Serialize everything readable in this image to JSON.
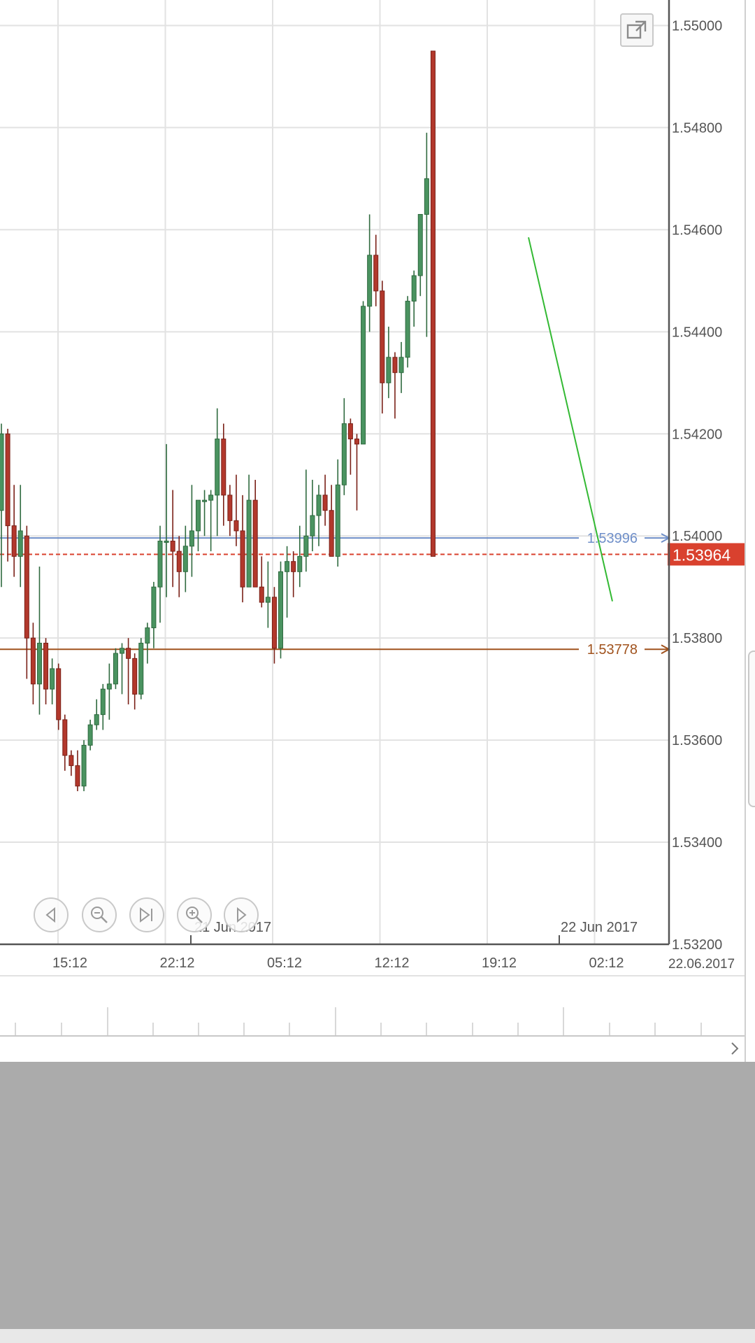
{
  "chart_data": {
    "type": "candlestick",
    "title": "",
    "ylim": [
      1.532,
      1.5505
    ],
    "y_ticks": [
      "1.55000",
      "1.54800",
      "1.54600",
      "1.54400",
      "1.54200",
      "1.54000",
      "1.53800",
      "1.53600",
      "1.53400",
      "1.53200"
    ],
    "y_tick_values": [
      1.55,
      1.548,
      1.546,
      1.544,
      1.542,
      1.54,
      1.538,
      1.536,
      1.534,
      1.532
    ],
    "x_ticks": [
      "15:12",
      "22:12",
      "05:12",
      "12:12",
      "19:12",
      "02:12"
    ],
    "date_labels": [
      "21 Jun 2017",
      "22 Jun 2017"
    ],
    "corner_date": "22.06.2017",
    "grid": true,
    "current_price": {
      "value": 1.53964,
      "label": "1.53964",
      "color": "#d9412e"
    },
    "hlines": [
      {
        "value": 1.53996,
        "label": "1.53996",
        "color": "#6f8fc9"
      },
      {
        "value": 1.53778,
        "label": "1.53778",
        "color": "#a0521d"
      }
    ],
    "trendline": {
      "from": [
        1.5,
        1.54585
      ],
      "to": [
        1.508,
        1.53872
      ],
      "color": "#33b933"
    },
    "candles": [
      [
        1.5405,
        1.5422,
        1.539,
        1.542
      ],
      [
        1.542,
        1.5421,
        1.5395,
        1.5402
      ],
      [
        1.5402,
        1.541,
        1.5392,
        1.5396
      ],
      [
        1.5396,
        1.541,
        1.539,
        1.5401
      ],
      [
        1.54,
        1.5402,
        1.5372,
        1.538
      ],
      [
        1.538,
        1.5383,
        1.5367,
        1.5371
      ],
      [
        1.5371,
        1.5394,
        1.5365,
        1.5379
      ],
      [
        1.5379,
        1.538,
        1.5367,
        1.537
      ],
      [
        1.537,
        1.5376,
        1.5367,
        1.5374
      ],
      [
        1.5374,
        1.5375,
        1.5362,
        1.5364
      ],
      [
        1.5364,
        1.5365,
        1.5354,
        1.5357
      ],
      [
        1.5357,
        1.5358,
        1.5353,
        1.5355
      ],
      [
        1.5355,
        1.5358,
        1.535,
        1.5351
      ],
      [
        1.5351,
        1.536,
        1.535,
        1.5359
      ],
      [
        1.5359,
        1.5364,
        1.5358,
        1.5363
      ],
      [
        1.5363,
        1.5368,
        1.5362,
        1.5365
      ],
      [
        1.5365,
        1.5371,
        1.5362,
        1.537
      ],
      [
        1.537,
        1.5375,
        1.5364,
        1.5371
      ],
      [
        1.5371,
        1.5378,
        1.537,
        1.5377
      ],
      [
        1.5377,
        1.5379,
        1.5369,
        1.5378
      ],
      [
        1.5378,
        1.538,
        1.5367,
        1.5376
      ],
      [
        1.5376,
        1.5377,
        1.5366,
        1.5369
      ],
      [
        1.5369,
        1.538,
        1.5368,
        1.5379
      ],
      [
        1.5379,
        1.5383,
        1.5375,
        1.5382
      ],
      [
        1.5382,
        1.5391,
        1.5378,
        1.539
      ],
      [
        1.539,
        1.5402,
        1.5383,
        1.5399
      ],
      [
        1.5399,
        1.5418,
        1.5388,
        1.5399
      ],
      [
        1.5399,
        1.5409,
        1.539,
        1.5397
      ],
      [
        1.5397,
        1.54,
        1.5388,
        1.5393
      ],
      [
        1.5393,
        1.5402,
        1.5389,
        1.5398
      ],
      [
        1.5398,
        1.541,
        1.5392,
        1.5401
      ],
      [
        1.5401,
        1.5406,
        1.5397,
        1.5407
      ],
      [
        1.5407,
        1.5409,
        1.54,
        1.5407
      ],
      [
        1.5407,
        1.5409,
        1.5397,
        1.5408
      ],
      [
        1.5408,
        1.5425,
        1.54,
        1.5419
      ],
      [
        1.5419,
        1.5422,
        1.5402,
        1.5408
      ],
      [
        1.5408,
        1.541,
        1.54,
        1.5403
      ],
      [
        1.5403,
        1.5412,
        1.5398,
        1.5401
      ],
      [
        1.5401,
        1.5408,
        1.5387,
        1.539
      ],
      [
        1.539,
        1.5412,
        1.539,
        1.5407
      ],
      [
        1.5407,
        1.5411,
        1.539,
        1.539
      ],
      [
        1.539,
        1.5396,
        1.5386,
        1.5387
      ],
      [
        1.5387,
        1.5395,
        1.5382,
        1.5388
      ],
      [
        1.5388,
        1.539,
        1.5375,
        1.5378
      ],
      [
        1.5378,
        1.5395,
        1.5376,
        1.5393
      ],
      [
        1.5393,
        1.5398,
        1.5384,
        1.5395
      ],
      [
        1.5395,
        1.5397,
        1.5388,
        1.5393
      ],
      [
        1.5393,
        1.5402,
        1.539,
        1.5396
      ],
      [
        1.5396,
        1.5413,
        1.5393,
        1.54
      ],
      [
        1.54,
        1.5411,
        1.5397,
        1.5404
      ],
      [
        1.5404,
        1.541,
        1.5398,
        1.5408
      ],
      [
        1.5408,
        1.5412,
        1.5402,
        1.5405
      ],
      [
        1.5405,
        1.541,
        1.5396,
        1.5396
      ],
      [
        1.5396,
        1.5415,
        1.5394,
        1.541
      ],
      [
        1.541,
        1.5427,
        1.5408,
        1.5422
      ],
      [
        1.5422,
        1.5423,
        1.5412,
        1.5419
      ],
      [
        1.5419,
        1.542,
        1.5405,
        1.5418
      ],
      [
        1.5418,
        1.5446,
        1.5418,
        1.5445
      ],
      [
        1.5445,
        1.5463,
        1.544,
        1.5455
      ],
      [
        1.5455,
        1.5459,
        1.5445,
        1.5448
      ],
      [
        1.5448,
        1.545,
        1.5424,
        1.543
      ],
      [
        1.543,
        1.5441,
        1.5427,
        1.5435
      ],
      [
        1.5435,
        1.5436,
        1.5423,
        1.5432
      ],
      [
        1.5432,
        1.5438,
        1.5428,
        1.5435
      ],
      [
        1.5435,
        1.5447,
        1.5433,
        1.5446
      ],
      [
        1.5446,
        1.5452,
        1.5441,
        1.5451
      ],
      [
        1.5451,
        1.5463,
        1.5447,
        1.5463
      ],
      [
        1.5463,
        1.5479,
        1.5439,
        1.547
      ],
      [
        1.5495,
        1.5495,
        1.5396,
        1.5396
      ]
    ]
  },
  "nav": {
    "prev_icon": "triangle-left-icon",
    "zoom_out_icon": "magnifier-minus-icon",
    "end_icon": "skip-to-end-icon",
    "zoom_in_icon": "magnifier-plus-icon",
    "next_icon": "triangle-right-icon"
  },
  "colors": {
    "bull": "#4a9360",
    "bear": "#b2382c",
    "grid": "#e2e2e2",
    "axis": "#555555",
    "text": "#555555"
  }
}
